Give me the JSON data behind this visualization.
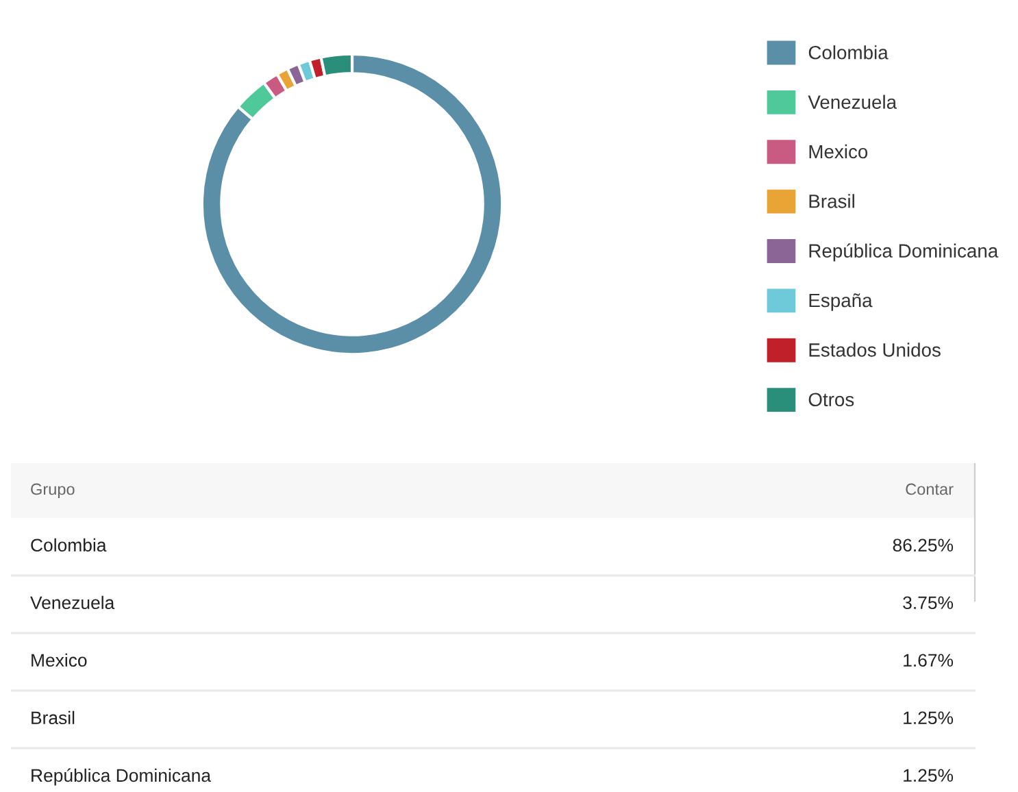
{
  "chart_data": {
    "type": "donut",
    "categories": [
      "Colombia",
      "Venezuela",
      "Mexico",
      "Brasil",
      "República Dominicana",
      "España",
      "Estados Unidos",
      "Otros"
    ],
    "values": [
      86.25,
      3.75,
      1.67,
      1.25,
      1.25,
      1.25,
      1.25,
      3.33
    ],
    "colors": [
      "#5b8fa8",
      "#4fc99a",
      "#c95b82",
      "#e8a535",
      "#8a6596",
      "#6ec9d9",
      "#c0202a",
      "#2a8f7a"
    ],
    "annotations": [
      "Grupo",
      "Contar",
      "86.25%",
      "3.75%",
      "1.67%",
      "1.25%",
      "1.25%"
    ],
    "legend": "right"
  }
}
